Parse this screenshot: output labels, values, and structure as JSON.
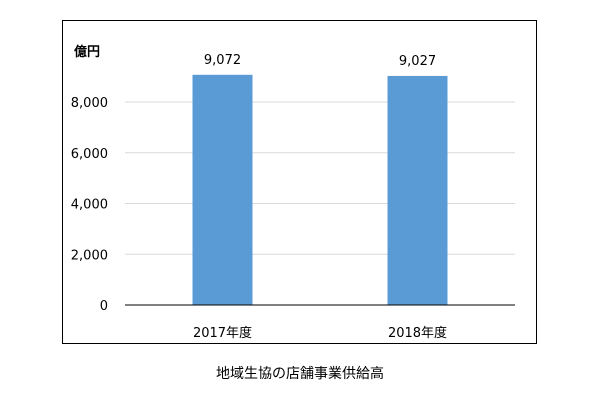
{
  "chart_data": {
    "type": "bar",
    "title": "",
    "unit_label": "億円",
    "categories": [
      "2017年度",
      "2018年度"
    ],
    "values": [
      9072,
      9027
    ],
    "value_labels": [
      "9,072",
      "9,027"
    ],
    "ylim": [
      0,
      9400
    ],
    "yticks": [
      0,
      2000,
      4000,
      6000,
      8000
    ],
    "ytick_labels": [
      "0",
      "2,000",
      "4,000",
      "6,000",
      "8,000"
    ],
    "grid": true,
    "legend": "none",
    "bar_color": "#5b9bd5",
    "grid_color": "#d9d9d9"
  },
  "caption": "地域生協の店舗事業供給高"
}
